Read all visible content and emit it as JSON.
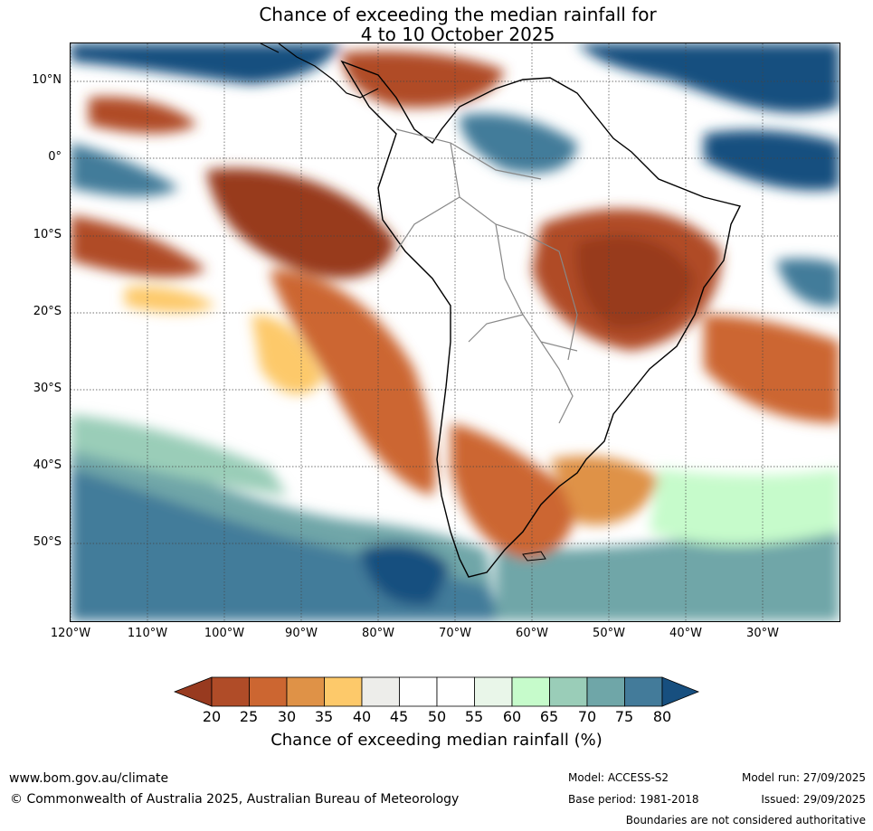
{
  "title": {
    "line1": "Chance of exceeding the median rainfall for",
    "line2": "4 to 10 October 2025"
  },
  "map": {
    "lat_labels": [
      "10°N",
      "0°",
      "10°S",
      "20°S",
      "30°S",
      "40°S",
      "50°S"
    ],
    "lon_labels": [
      "120°W",
      "110°W",
      "100°W",
      "90°W",
      "80°W",
      "70°W",
      "60°W",
      "50°W",
      "40°W",
      "30°W"
    ],
    "lat_values": [
      10,
      0,
      -10,
      -20,
      -30,
      -40,
      -50
    ],
    "lon_values": [
      -120,
      -110,
      -100,
      -90,
      -80,
      -70,
      -60,
      -50,
      -40,
      -30
    ],
    "extent": {
      "lon_min": -120,
      "lon_max": -20,
      "lat_min": -60,
      "lat_max": 15
    },
    "regions": [
      {
        "name": "Eastern Brazil",
        "value_category": "below 20%",
        "color": "#983a1f"
      },
      {
        "name": "Southern Argentina",
        "value_category": "20-30%",
        "color": "#cc6631"
      },
      {
        "name": "Southern Ocean",
        "value_category": "70-80%",
        "color": "#437b9a"
      },
      {
        "name": "Equatorial Pacific",
        "value_category": "above 80%",
        "color": "#174f7f"
      }
    ]
  },
  "colorbar": {
    "ticks": [
      "20",
      "25",
      "30",
      "35",
      "40",
      "45",
      "50",
      "55",
      "60",
      "65",
      "70",
      "75",
      "80"
    ],
    "colors": [
      "#983a1f",
      "#b04c28",
      "#cc6631",
      "#df9247",
      "#fdc96a",
      "#ededea",
      "#ffffff",
      "#ffffff",
      "#e9f6e9",
      "#c6fbcb",
      "#9acdb8",
      "#6fa6a8",
      "#437b9a",
      "#174f7f"
    ],
    "label": "Chance of exceeding median rainfall (%)"
  },
  "footer": {
    "url": "www.bom.gov.au/climate",
    "copyright": "© Commonwealth of Australia 2025, Australian Bureau of Meteorology",
    "model": "Model: ACCESS-S2",
    "base_period": "Base period: 1981-2018",
    "model_run": "Model run: 27/09/2025",
    "issued": "Issued: 29/09/2025",
    "disclaimer": "Boundaries are not considered authoritative"
  }
}
